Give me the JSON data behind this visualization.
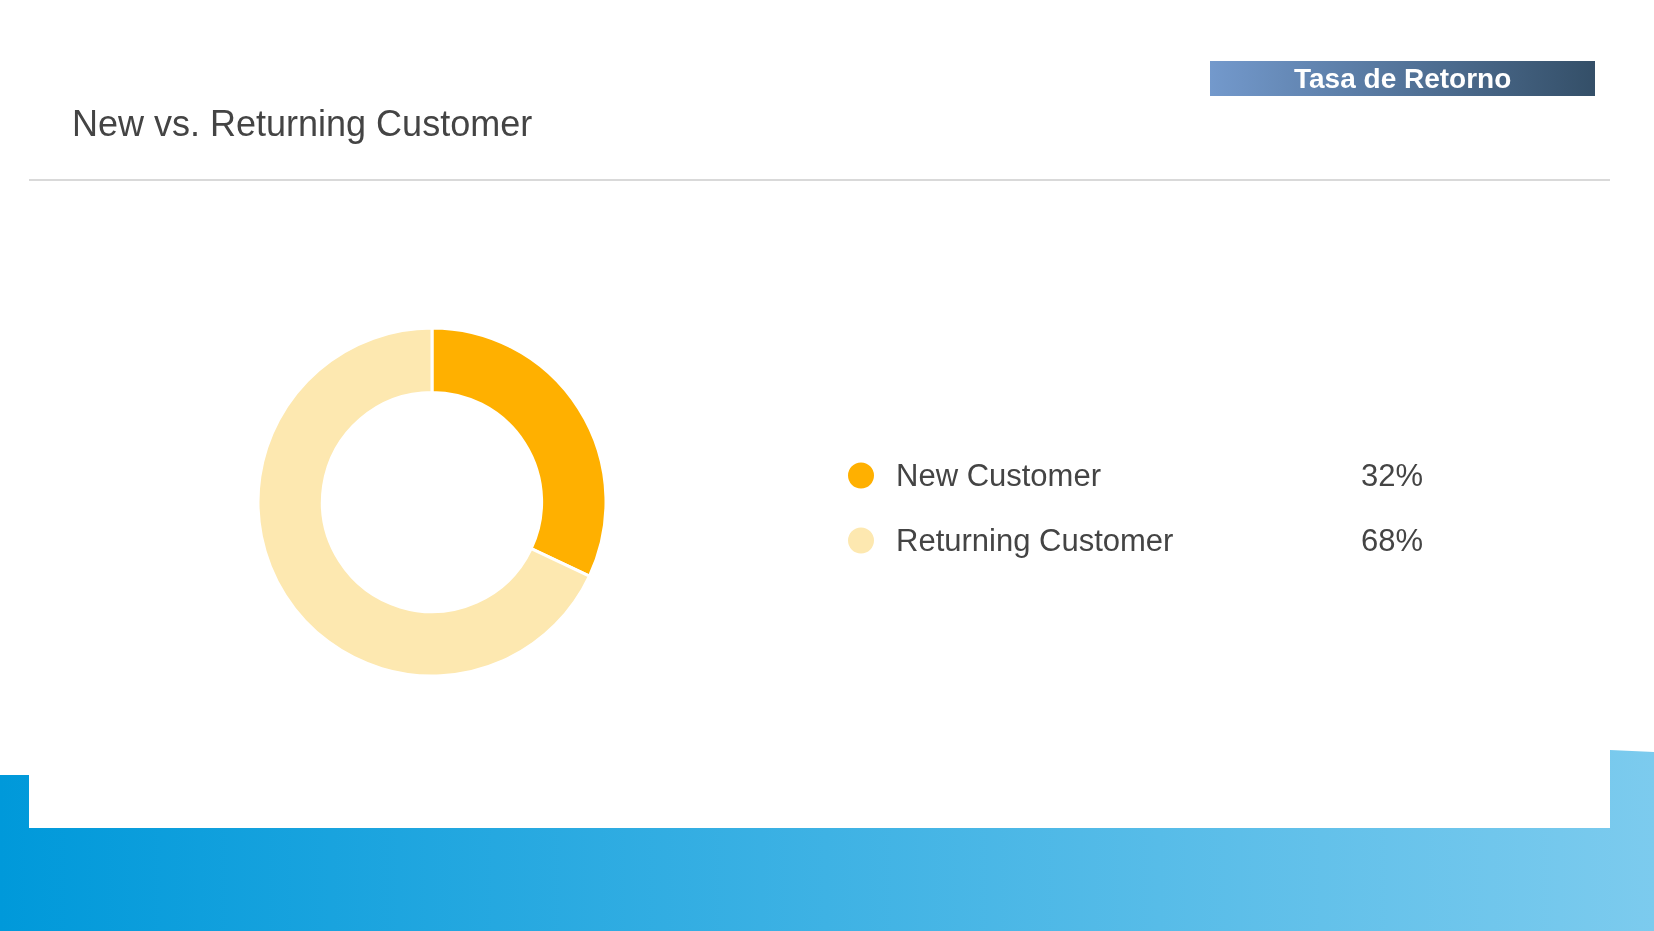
{
  "chart_data": {
    "type": "donut",
    "title": "New vs. Returning Customer",
    "annotations": [
      "Tasa de Retorno"
    ],
    "categories": [
      "New Customer",
      "Returning Customer"
    ],
    "values": [
      32,
      68
    ],
    "colors": [
      "#ffb000",
      "#fde8b0"
    ],
    "value_labels": [
      "32%",
      "68%"
    ],
    "legend": "right"
  }
}
